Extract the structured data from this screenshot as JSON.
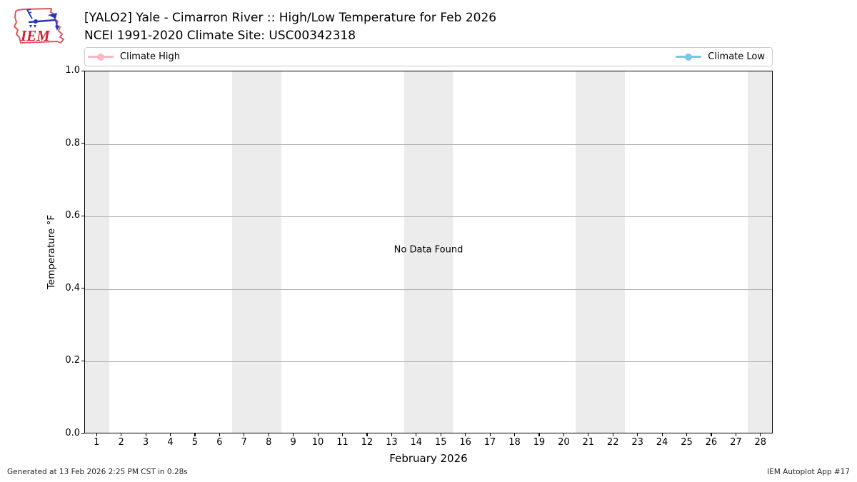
{
  "header": {
    "title": "[YALO2] Yale - Cimarron River :: High/Low Temperature for Feb 2026",
    "subtitle": "NCEI 1991-2020 Climate Site: USC00342318",
    "logo_text": "IEM"
  },
  "legend": {
    "entries": [
      {
        "label": "Climate High",
        "color": "#ffb6c1"
      },
      {
        "label": "Climate Low",
        "color": "#7cc6e6"
      }
    ]
  },
  "chart_data": {
    "type": "line",
    "title": "[YALO2] Yale - Cimarron River :: High/Low Temperature for Feb 2026",
    "subtitle": "NCEI 1991-2020 Climate Site: USC00342318",
    "xlabel": "February 2026",
    "ylabel": "Temperature °F",
    "xlim": [
      0.5,
      28.5
    ],
    "ylim": [
      0.0,
      1.0
    ],
    "x_ticks": [
      1,
      2,
      3,
      4,
      5,
      6,
      7,
      8,
      9,
      10,
      11,
      12,
      13,
      14,
      15,
      16,
      17,
      18,
      19,
      20,
      21,
      22,
      23,
      24,
      25,
      26,
      27,
      28
    ],
    "y_ticks": [
      {
        "value": 0.0,
        "label": "0.0"
      },
      {
        "value": 0.2,
        "label": "0.2"
      },
      {
        "value": 0.4,
        "label": "0.4"
      },
      {
        "value": 0.6,
        "label": "0.6"
      },
      {
        "value": 0.8,
        "label": "0.8"
      },
      {
        "value": 1.0,
        "label": "1.0"
      }
    ],
    "grid": "horizontal",
    "gridline_color": "#b0b0b0",
    "weekend_bands": [
      [
        0.5,
        1.5
      ],
      [
        6.5,
        8.5
      ],
      [
        13.5,
        15.5
      ],
      [
        20.5,
        22.5
      ],
      [
        27.5,
        28.5
      ]
    ],
    "band_color": "#ececec",
    "legend_position": "top",
    "series": [
      {
        "name": "Climate High",
        "color": "#ffb6c1",
        "x": [],
        "values": []
      },
      {
        "name": "Climate Low",
        "color": "#7cc6e6",
        "x": [],
        "values": []
      }
    ],
    "no_data_message": "No Data Found"
  },
  "footer": {
    "generated": "Generated at 13 Feb 2026 2:25 PM CST in 0.28s",
    "app": "IEM Autoplot App #17"
  }
}
